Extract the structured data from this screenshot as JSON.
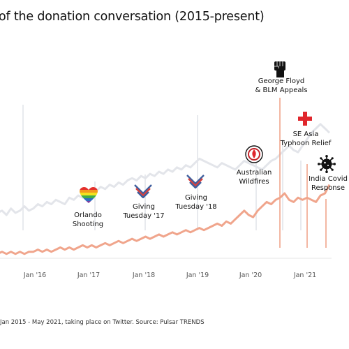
{
  "title": "of the donation conversation (2015-present)",
  "source_note": "Jan 2015 - May 2021, taking place on Twitter. Source: Pulsar TRENDS",
  "colors": {
    "series_grey": "#e3e5ea",
    "series_salmon": "#f0a58c",
    "red_cross": "#e0262c",
    "flag_blue": "#3f5f9e",
    "flag_red": "#d8413e"
  },
  "annotations": [
    {
      "id": "orlando",
      "lines": [
        "Orlando",
        "Shooting"
      ],
      "icon": "rainbow-heart-icon"
    },
    {
      "id": "gt17",
      "lines": [
        "Giving",
        "Tuesday '17"
      ],
      "icon": "giving-tuesday-heart-icon"
    },
    {
      "id": "gt18",
      "lines": [
        "Giving",
        "Tuesday '18"
      ],
      "icon": "giving-tuesday-heart-icon"
    },
    {
      "id": "aus",
      "lines": [
        "Australian",
        "Wildfires"
      ],
      "icon": "fire-service-badge-icon"
    },
    {
      "id": "blm",
      "lines": [
        "George Floyd",
        "& BLM Appeals"
      ],
      "icon": "raised-fist-icon"
    },
    {
      "id": "asia",
      "lines": [
        "SE Asia",
        "Typhoon Relief"
      ],
      "icon": "red-cross-icon"
    },
    {
      "id": "india",
      "lines": [
        "India Covid",
        "Response"
      ],
      "icon": "virus-icon"
    }
  ],
  "chart_data": {
    "type": "line",
    "title": "of the donation conversation (2015-present)",
    "x_ticks": [
      "Jan '16",
      "Jan '17",
      "Jan '18",
      "Jan '19",
      "Jan '20",
      "Jan '21"
    ],
    "x_range": [
      "2015-01",
      "2021-05"
    ],
    "series": [
      {
        "color": "#e3e5ea",
        "values": [
          0.2,
          0.21,
          0.22,
          0.2,
          0.23,
          0.21,
          0.22,
          0.24,
          0.22,
          0.23,
          0.25,
          0.24,
          0.26,
          0.25,
          0.27,
          0.26,
          0.25,
          0.28,
          0.27,
          0.29,
          0.28,
          0.3,
          0.29,
          0.31,
          0.33,
          0.32,
          0.34,
          0.33,
          0.35,
          0.34,
          0.36,
          0.37,
          0.36,
          0.38,
          0.37,
          0.39,
          0.38,
          0.4,
          0.39,
          0.41,
          0.4,
          0.42,
          0.41,
          0.43,
          0.42,
          0.44,
          0.46,
          0.45,
          0.44,
          0.43,
          0.42,
          0.44,
          0.43,
          0.42,
          0.41,
          0.43,
          0.45,
          0.44,
          0.43,
          0.42,
          0.41,
          0.43,
          0.45,
          0.46,
          0.48,
          0.5,
          0.52,
          0.5,
          0.49,
          0.52,
          0.55,
          0.58,
          0.6,
          0.62,
          0.6,
          0.58
        ]
      },
      {
        "color": "#f0a58c",
        "values": [
          0.02,
          0.02,
          0.03,
          0.02,
          0.03,
          0.02,
          0.03,
          0.02,
          0.03,
          0.03,
          0.04,
          0.03,
          0.04,
          0.03,
          0.04,
          0.05,
          0.04,
          0.05,
          0.04,
          0.05,
          0.06,
          0.05,
          0.06,
          0.05,
          0.06,
          0.07,
          0.06,
          0.07,
          0.08,
          0.07,
          0.08,
          0.09,
          0.08,
          0.09,
          0.1,
          0.09,
          0.1,
          0.11,
          0.1,
          0.11,
          0.12,
          0.11,
          0.12,
          0.13,
          0.12,
          0.13,
          0.14,
          0.13,
          0.14,
          0.15,
          0.16,
          0.15,
          0.17,
          0.16,
          0.18,
          0.2,
          0.22,
          0.2,
          0.19,
          0.22,
          0.24,
          0.26,
          0.25,
          0.27,
          0.28,
          0.3,
          0.27,
          0.26,
          0.28,
          0.27,
          0.28,
          0.27,
          0.26,
          0.29,
          0.3,
          0.34
        ]
      }
    ],
    "grid": false,
    "legend": "none"
  }
}
